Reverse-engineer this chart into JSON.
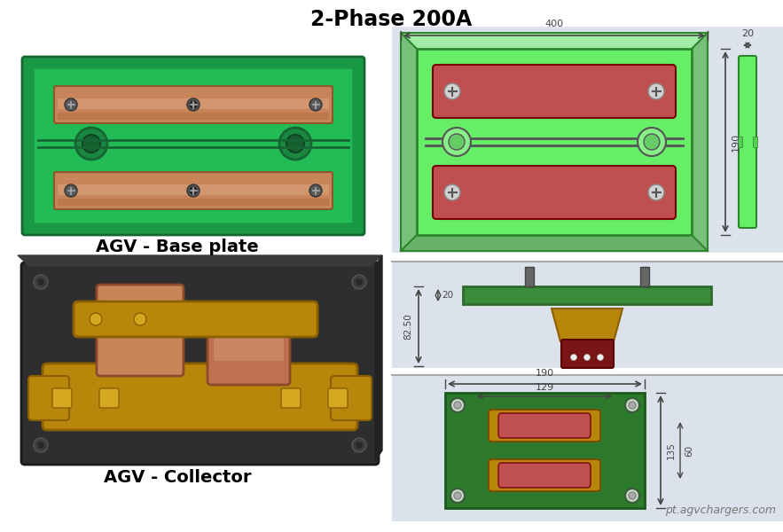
{
  "title": "2-Phase 200A",
  "title_fontsize": 17,
  "title_fontweight": "bold",
  "label_base_plate": "AGV - Base plate",
  "label_collector": "AGV - Collector",
  "label_fontsize": 14,
  "label_fontweight": "bold",
  "watermark": "pt.agvchargers.com",
  "watermark_fontsize": 9,
  "bg_color": "#ffffff",
  "diagram_bg_top": "#dde3ec",
  "diagram_bg_mid": "#dce2eb",
  "diagram_bg_bot": "#dce2eb",
  "green_bright": "#66ee66",
  "green_mid": "#44cc44",
  "green_dark_cad": "#2d862d",
  "green_plate_photo": "#22bb55",
  "green_dark_photo": "#1a9944",
  "red_contact": "#c05050",
  "gold_color": "#b8860b",
  "gold_light": "#d4a820",
  "dark_red": "#7a1515",
  "cu_photo": "#c8855a",
  "cu_light_photo": "#dba882",
  "black_base": "#2a2a2a",
  "dim_color": "#444444",
  "dim400": "400",
  "dim190_side": "190",
  "dim20": "20",
  "dim82_50": "82.50",
  "dim30": "20",
  "dim190_top": "190",
  "dim129": "129",
  "dim60": "60",
  "dim135": "135"
}
